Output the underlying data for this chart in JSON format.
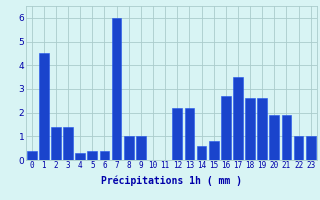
{
  "categories": [
    0,
    1,
    2,
    3,
    4,
    5,
    6,
    7,
    8,
    9,
    10,
    11,
    12,
    13,
    14,
    15,
    16,
    17,
    18,
    19,
    20,
    21,
    22,
    23
  ],
  "values": [
    0.4,
    4.5,
    1.4,
    1.4,
    0.3,
    0.4,
    0.4,
    6.0,
    1.0,
    1.0,
    0.0,
    0.0,
    2.2,
    2.2,
    0.6,
    0.8,
    2.7,
    3.5,
    2.6,
    2.6,
    1.9,
    1.9,
    1.0,
    1.0
  ],
  "bar_color": "#1a44cc",
  "bar_edge_color": "#2255ee",
  "background_color": "#d8f4f4",
  "grid_color": "#aacccc",
  "xlabel": "Précipitations 1h ( mm )",
  "xlabel_color": "#0000aa",
  "tick_color": "#0000aa",
  "ylim": [
    0,
    6.5
  ],
  "yticks": [
    0,
    1,
    2,
    3,
    4,
    5,
    6
  ],
  "tick_fontsize": 5.5,
  "xlabel_fontsize": 7.0
}
